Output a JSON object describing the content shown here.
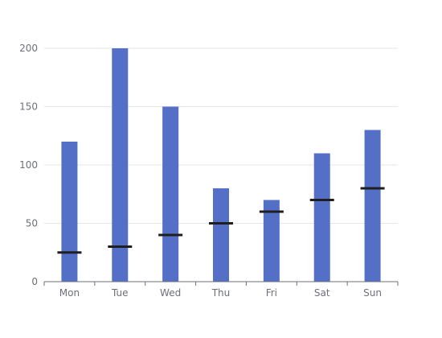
{
  "chart_data": {
    "type": "bar",
    "categories": [
      "Mon",
      "Tue",
      "Wed",
      "Thu",
      "Fri",
      "Sat",
      "Sun"
    ],
    "series": [
      {
        "type": "bar",
        "values": [
          120,
          200,
          150,
          80,
          70,
          110,
          130
        ]
      },
      {
        "type": "marker",
        "values": [
          25,
          30,
          40,
          50,
          60,
          70,
          80
        ]
      }
    ],
    "ylim": [
      0,
      200
    ],
    "yticks": [
      0,
      50,
      100,
      150,
      200
    ],
    "grid": true,
    "title": "",
    "xlabel": "",
    "ylabel": ""
  },
  "colors": {
    "bar": "#5470c6",
    "marker": "#1f1f1f",
    "grid": "#e6e6e6",
    "axis": "#6e7079",
    "label": "#6e7079"
  }
}
